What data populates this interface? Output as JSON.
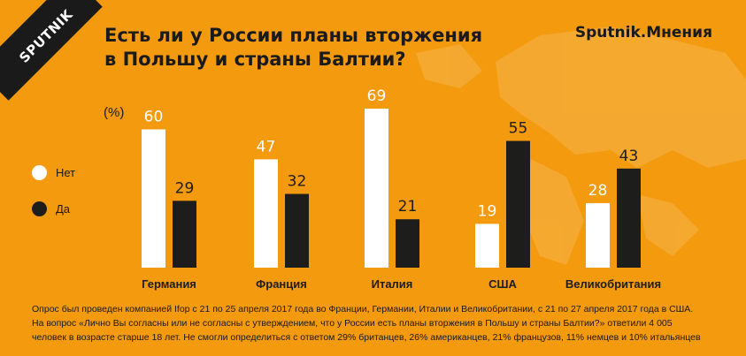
{
  "header": {
    "logo": "SPUTNIK",
    "title_line1": "Есть ли у России планы вторжения",
    "title_line2": "в Польшу и страны Балтии?",
    "brand": "Sputnik.Мнения"
  },
  "legend": {
    "no_label": "Нет",
    "yes_label": "Да",
    "no_color": "#ffffff",
    "yes_color": "#1d1d1b"
  },
  "chart_data": {
    "type": "bar",
    "unit": "(%)",
    "categories": [
      "Германия",
      "Франция",
      "Италия",
      "США",
      "Великобритания"
    ],
    "series": [
      {
        "name": "Нет",
        "color": "#ffffff",
        "values": [
          60,
          47,
          69,
          19,
          28
        ]
      },
      {
        "name": "Да",
        "color": "#1d1d1b",
        "values": [
          29,
          32,
          21,
          55,
          43
        ]
      }
    ],
    "ylim": [
      0,
      69
    ],
    "grid": false,
    "legend_position": "left"
  },
  "footnote": {
    "line1": "Опрос был проведен компанией Ifop с 21 по 25 апреля 2017 года во Франции, Германии, Италии и Великобритании, с 21 по 27 апреля 2017 года в США.",
    "line2": "На вопрос «Лично Вы согласны или не согласны с утверждением, что у России есть планы вторжения в Польшу и страны Балтии?» ответили 4 005",
    "line3": "человек в возрасте старше 18 лет. Не смогли определиться с ответом 29% британцев, 26% американцев, 21% французов, 11% немцев и 10% итальянцев"
  }
}
